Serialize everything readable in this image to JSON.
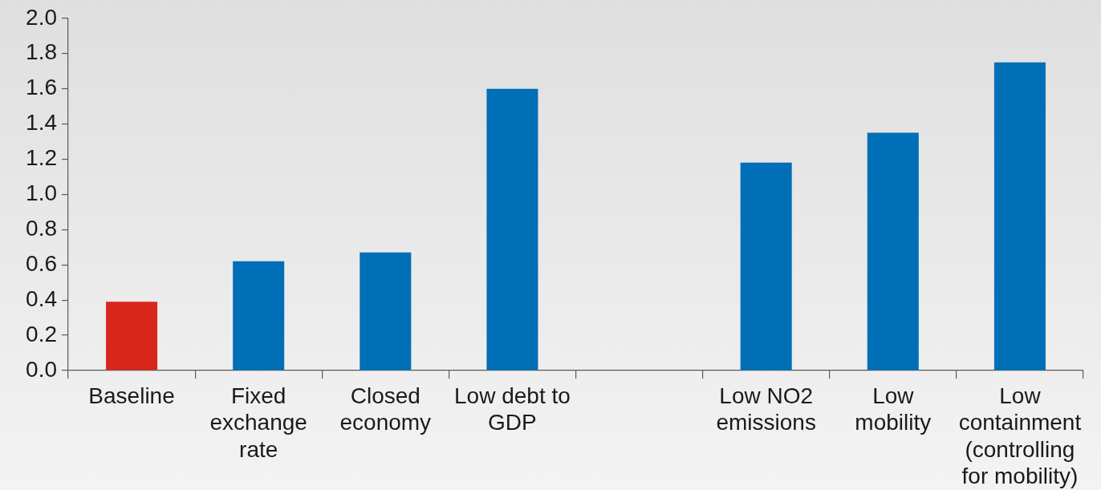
{
  "chart_data": {
    "type": "bar",
    "categories": [
      "Baseline",
      "Fixed exchange rate",
      "Closed economy",
      "Low debt to GDP",
      null,
      "Low NO2 emissions",
      "Low mobility",
      "Low containment (controlling for mobility)"
    ],
    "values": [
      0.39,
      0.62,
      0.67,
      1.6,
      null,
      1.18,
      1.35,
      1.75
    ],
    "colors": [
      "#d9261c",
      "#006fb8",
      "#006fb8",
      "#006fb8",
      "#006fb8",
      "#006fb8",
      "#006fb8",
      "#006fb8"
    ],
    "ylim": [
      0,
      2
    ],
    "yticks": [
      {
        "value": 0,
        "label": "0.0"
      },
      0.2,
      0.4,
      0.6,
      0.8,
      {
        "value": 1,
        "label": "1.0"
      },
      1.2,
      1.4,
      1.6,
      1.8,
      {
        "value": 2,
        "label": "2.0"
      }
    ]
  }
}
